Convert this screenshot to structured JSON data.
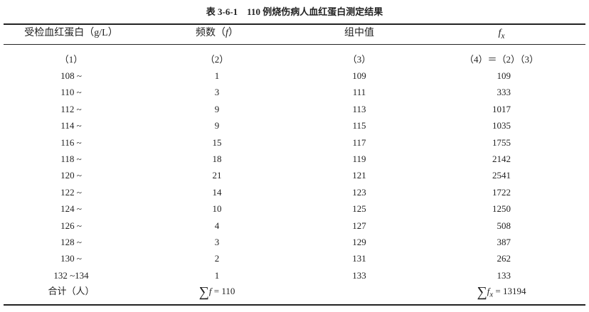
{
  "title": "表 3-6-1　110 例烧伤病人血红蛋白测定结果",
  "headers": [
    "受检血红蛋白（g/L）",
    "频数（",
    "f",
    "）",
    "组中值",
    "f",
    "x"
  ],
  "col_numbers": [
    "（1）",
    "（2）",
    "（3）",
    "（4）＝（2）（3）"
  ],
  "rows": [
    [
      "108 ~",
      "1",
      "109",
      "109"
    ],
    [
      "110 ~",
      "3",
      "111",
      "333"
    ],
    [
      "112 ~",
      "9",
      "113",
      "1017"
    ],
    [
      "114 ~",
      "9",
      "115",
      "1035"
    ],
    [
      "116 ~",
      "15",
      "117",
      "1755"
    ],
    [
      "118 ~",
      "18",
      "119",
      "2142"
    ],
    [
      "120 ~",
      "21",
      "121",
      "2541"
    ],
    [
      "122 ~",
      "14",
      "123",
      "1722"
    ],
    [
      "124 ~",
      "10",
      "125",
      "1250"
    ],
    [
      "126 ~",
      "4",
      "127",
      "508"
    ],
    [
      "128 ~",
      "3",
      "129",
      "387"
    ],
    [
      "130 ~",
      "2",
      "131",
      "262"
    ],
    [
      "132 ~134",
      "1",
      "133",
      "133"
    ]
  ],
  "total": {
    "label": "合计（人）",
    "sigma": "∑",
    "f": "f",
    "f_value": " = 110",
    "fx_f": "f",
    "fx_x": "x",
    "fx_value": " = 13194"
  }
}
